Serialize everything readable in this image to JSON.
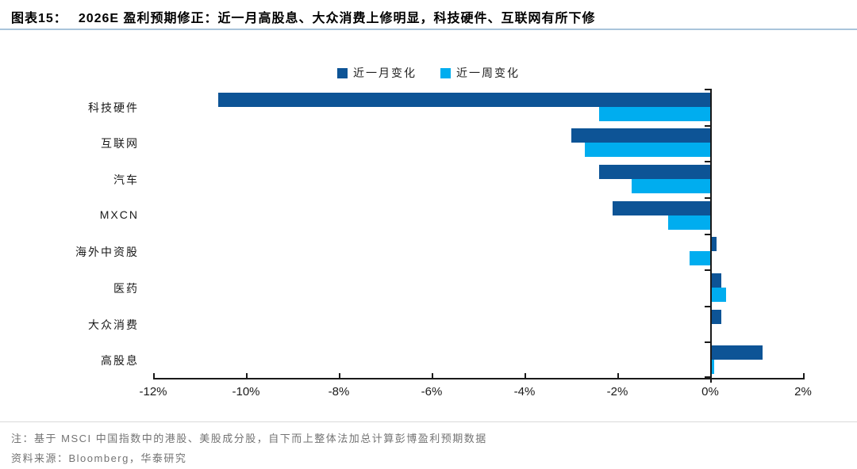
{
  "header": {
    "tag": "图表15：",
    "title": "2026E 盈利预期修正：近一月高股息、大众消费上修明显，科技硬件、互联网有所下修"
  },
  "legend": [
    {
      "label": "近一月变化",
      "color": "#0d5496"
    },
    {
      "label": "近一周变化",
      "color": "#00adef"
    }
  ],
  "chart_data": {
    "type": "bar",
    "orientation": "horizontal",
    "title": "2026E 盈利预期修正",
    "categories": [
      "科技硬件",
      "互联网",
      "汽车",
      "MXCN",
      "海外中资股",
      "医药",
      "大众消费",
      "高股息"
    ],
    "series": [
      {
        "name": "近一月变化",
        "color": "#0d5496",
        "values": [
          -10.6,
          -3.0,
          -2.4,
          -2.1,
          0.1,
          0.2,
          0.2,
          1.1
        ]
      },
      {
        "name": "近一周变化",
        "color": "#00adef",
        "values": [
          -2.4,
          -2.7,
          -1.7,
          -0.9,
          -0.45,
          0.3,
          0.0,
          0.05
        ]
      }
    ],
    "value_unit": "%",
    "xlim": [
      -12,
      2
    ],
    "x_ticks": [
      {
        "value": -12,
        "label": "-12%"
      },
      {
        "value": -10,
        "label": "-10%"
      },
      {
        "value": -8,
        "label": "-8%"
      },
      {
        "value": -6,
        "label": "-6%"
      },
      {
        "value": -4,
        "label": "-4%"
      },
      {
        "value": -2,
        "label": "-2%"
      },
      {
        "value": 0,
        "label": "0%"
      },
      {
        "value": 2,
        "label": "2%"
      }
    ],
    "grid": false,
    "legend_position": "top-center"
  },
  "footnotes": {
    "note": "注：基于 MSCI 中国指数中的港股、美股成分股，自下而上整体法加总计算彭博盈利预期数据",
    "source": "资料来源：Bloomberg，华泰研究"
  }
}
